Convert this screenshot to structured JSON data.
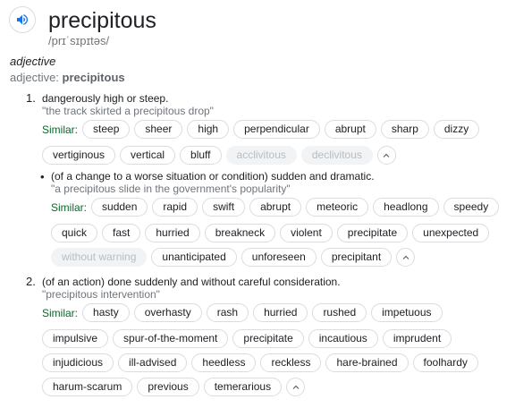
{
  "header": {
    "word": "precipitous",
    "phonetic": "/prɪˈsɪpɪtəs/",
    "pos": "adjective",
    "adj_prefix": "adjective:",
    "adj_word": "precipitous"
  },
  "sense1": {
    "num": "1.",
    "def": "dangerously high or steep.",
    "example": "\"the track skirted a precipitous drop\"",
    "similar_label": "Similar:",
    "row1": [
      "steep",
      "sheer",
      "high",
      "perpendicular",
      "abrupt",
      "sharp",
      "dizzy"
    ],
    "row2": [
      "vertiginous",
      "vertical",
      "bluff"
    ],
    "row2_dim": [
      "acclivitous",
      "declivitous"
    ]
  },
  "subsense": {
    "bullet": "•",
    "def": "(of a change to a worse situation or condition) sudden and dramatic.",
    "example": "\"a precipitous slide in the government's popularity\"",
    "similar_label": "Similar:",
    "row1": [
      "sudden",
      "rapid",
      "swift",
      "abrupt",
      "meteoric",
      "headlong",
      "speedy"
    ],
    "row2": [
      "quick",
      "fast",
      "hurried",
      "breakneck",
      "violent",
      "precipitate",
      "unexpected"
    ],
    "row3_dim": [
      "without warning"
    ],
    "row3": [
      "unanticipated",
      "unforeseen",
      "precipitant"
    ]
  },
  "sense2": {
    "num": "2.",
    "def": "(of an action) done suddenly and without careful consideration.",
    "example": "\"precipitous intervention\"",
    "similar_label": "Similar:",
    "row1": [
      "hasty",
      "overhasty",
      "rash",
      "hurried",
      "rushed",
      "impetuous"
    ],
    "row2": [
      "impulsive",
      "spur-of-the-moment",
      "precipitate",
      "incautious",
      "imprudent"
    ],
    "row3": [
      "injudicious",
      "ill-advised",
      "heedless",
      "reckless",
      "hare-brained",
      "foolhardy"
    ],
    "row4": [
      "harum-scarum",
      "previous",
      "temerarious"
    ]
  },
  "colors": {
    "similar": "#0d652d",
    "icon_blue": "#1a73e8"
  },
  "icons": {
    "speaker": "speaker-icon",
    "collapse": "chevron-up-icon"
  }
}
